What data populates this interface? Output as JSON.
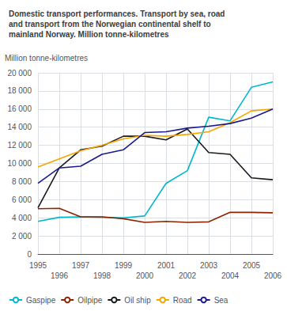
{
  "chart_data": {
    "type": "line",
    "title": "Domestic transport performances. Transport by sea, road\nand transport from the Norwegian continental shelf to\nmainland Norway. Million tonne-kilometres",
    "y_label": "Million tonne-kilometres",
    "x": [
      1995,
      1996,
      1997,
      1998,
      1999,
      2000,
      2001,
      2002,
      2003,
      2004,
      2005,
      2006
    ],
    "xlim": [
      1995,
      2006
    ],
    "xticks": [
      1995,
      1996,
      1997,
      1998,
      1999,
      2000,
      2001,
      2002,
      2003,
      2004,
      2005,
      2006
    ],
    "ylim": [
      0,
      20000
    ],
    "yticks": [
      0,
      {
        "value": 2000,
        "label": "2 000"
      },
      {
        "value": 4000,
        "label": "4 000"
      },
      {
        "value": 6000,
        "label": "6 000"
      },
      {
        "value": 8000,
        "label": "8 000"
      },
      {
        "value": 10000,
        "label": "10 000"
      },
      {
        "value": 12000,
        "label": "12 000"
      },
      {
        "value": 14000,
        "label": "14 000"
      },
      {
        "value": 16000,
        "label": "16 000"
      },
      {
        "value": 18000,
        "label": "18 000"
      },
      {
        "value": 20000,
        "label": "20 000"
      }
    ],
    "series": [
      {
        "name": "Gaspipe",
        "color": "#00b8cc",
        "values": [
          3600,
          4050,
          4100,
          4050,
          4000,
          4200,
          7800,
          9200,
          15100,
          14700,
          18400,
          19000
        ]
      },
      {
        "name": "Oilpipe",
        "color": "#8b2500",
        "values": [
          5000,
          5050,
          4100,
          4100,
          3900,
          3500,
          3600,
          3500,
          3550,
          4600,
          4600,
          4550
        ]
      },
      {
        "name": "Oil ship",
        "color": "#1a1a1a",
        "values": [
          5100,
          9500,
          11500,
          11900,
          13000,
          13000,
          12600,
          13800,
          11200,
          11000,
          8400,
          8200
        ]
      },
      {
        "name": "Road",
        "color": "#f5a500",
        "values": [
          9600,
          10500,
          11400,
          12000,
          12700,
          13100,
          13000,
          13200,
          13500,
          14500,
          15800,
          16000
        ]
      },
      {
        "name": "Sea",
        "color": "#1a1a8c",
        "values": [
          7800,
          9500,
          9700,
          11000,
          11500,
          13400,
          13500,
          13900,
          14100,
          14400,
          15000,
          16000
        ]
      }
    ],
    "grid": true,
    "legend": "bottom"
  }
}
